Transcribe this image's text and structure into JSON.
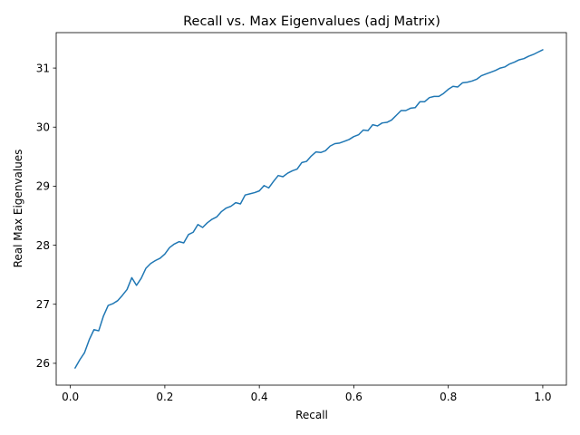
{
  "chart_data": {
    "type": "line",
    "title": "Recall vs. Max Eigenvalues (adj Matrix)",
    "xlabel": "Recall",
    "ylabel": "Real Max Eigenvalues",
    "xlim": [
      -0.03,
      1.05
    ],
    "ylim": [
      25.63,
      31.6
    ],
    "xticks": [
      0.0,
      0.2,
      0.4,
      0.6,
      0.8,
      1.0
    ],
    "xtick_labels": [
      "0.0",
      "0.2",
      "0.4",
      "0.6",
      "0.8",
      "1.0"
    ],
    "yticks": [
      26,
      27,
      28,
      29,
      30,
      31
    ],
    "ytick_labels": [
      "26",
      "27",
      "28",
      "29",
      "30",
      "31"
    ],
    "grid": false,
    "line_color": "#1f77b4",
    "series": [
      {
        "x": [
          0.01,
          0.02,
          0.03,
          0.04,
          0.05,
          0.06,
          0.07,
          0.08,
          0.09,
          0.1,
          0.11,
          0.12,
          0.13,
          0.14,
          0.15,
          0.16,
          0.17,
          0.18,
          0.19,
          0.2,
          0.21,
          0.22,
          0.23,
          0.24,
          0.25,
          0.26,
          0.27,
          0.28,
          0.29,
          0.3,
          0.31,
          0.32,
          0.33,
          0.34,
          0.35,
          0.36,
          0.37,
          0.38,
          0.39,
          0.4,
          0.41,
          0.42,
          0.43,
          0.44,
          0.45,
          0.46,
          0.47,
          0.48,
          0.49,
          0.5,
          0.51,
          0.52,
          0.53,
          0.54,
          0.55,
          0.56,
          0.57,
          0.58,
          0.59,
          0.6,
          0.61,
          0.62,
          0.63,
          0.64,
          0.65,
          0.66,
          0.67,
          0.68,
          0.69,
          0.7,
          0.71,
          0.72,
          0.73,
          0.74,
          0.75,
          0.76,
          0.77,
          0.78,
          0.79,
          0.8,
          0.81,
          0.82,
          0.83,
          0.84,
          0.85,
          0.86,
          0.87,
          0.88,
          0.89,
          0.9,
          0.91,
          0.92,
          0.93,
          0.94,
          0.95,
          0.96,
          0.97,
          0.98,
          0.99,
          1.0
        ],
        "y": [
          25.92,
          26.06,
          26.18,
          26.4,
          26.57,
          26.55,
          26.8,
          26.98,
          27.01,
          27.06,
          27.15,
          27.25,
          27.45,
          27.32,
          27.44,
          27.61,
          27.69,
          27.74,
          27.78,
          27.85,
          27.96,
          28.02,
          28.06,
          28.04,
          28.18,
          28.22,
          28.35,
          28.3,
          28.38,
          28.44,
          28.48,
          28.57,
          28.63,
          28.66,
          28.72,
          28.7,
          28.85,
          28.87,
          28.89,
          28.92,
          29.01,
          28.97,
          29.08,
          29.18,
          29.16,
          29.22,
          29.26,
          29.29,
          29.4,
          29.42,
          29.51,
          29.58,
          29.57,
          29.6,
          29.68,
          29.72,
          29.73,
          29.76,
          29.79,
          29.84,
          29.87,
          29.95,
          29.94,
          30.04,
          30.02,
          30.07,
          30.08,
          30.12,
          30.2,
          30.28,
          30.28,
          30.32,
          30.33,
          30.43,
          30.43,
          30.5,
          30.52,
          30.52,
          30.57,
          30.64,
          30.69,
          30.68,
          30.75,
          30.76,
          30.78,
          30.81,
          30.87,
          30.9,
          30.93,
          30.96,
          31.0,
          31.02,
          31.07,
          31.1,
          31.14,
          31.16,
          31.2,
          31.23,
          31.27,
          31.31
        ]
      }
    ]
  }
}
